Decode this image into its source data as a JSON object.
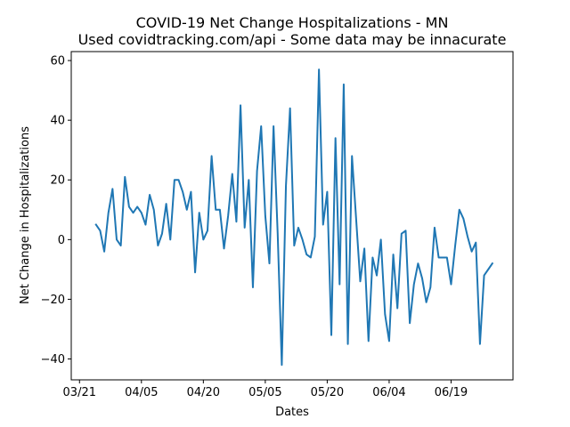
{
  "chart_data": {
    "type": "line",
    "title_line1": "COVID-19 Net Change Hospitalizations - MN",
    "title_line2": "Used covidtracking.com/api - Some data may be innacurate",
    "xlabel": "Dates",
    "ylabel": "Net Change in Hospitalizations",
    "x_start": "2020-03-25",
    "x_end": "2020-06-30",
    "xlim": [
      "2020-03-19",
      "2020-07-04"
    ],
    "ylim": [
      -47,
      63
    ],
    "x_ticks": [
      {
        "date": "2020-03-21",
        "label": "03/21"
      },
      {
        "date": "2020-04-05",
        "label": "04/05"
      },
      {
        "date": "2020-04-20",
        "label": "04/20"
      },
      {
        "date": "2020-05-05",
        "label": "05/05"
      },
      {
        "date": "2020-05-20",
        "label": "05/20"
      },
      {
        "date": "2020-06-04",
        "label": "06/04"
      },
      {
        "date": "2020-06-19",
        "label": "06/19"
      }
    ],
    "y_ticks": [
      {
        "value": 60,
        "label": "60"
      },
      {
        "value": 40,
        "label": "40"
      },
      {
        "value": 20,
        "label": "20"
      },
      {
        "value": 0,
        "label": "0"
      },
      {
        "value": -20,
        "label": "−20"
      },
      {
        "value": -40,
        "label": "−40"
      }
    ],
    "series": [
      {
        "color": "#1f77b4",
        "values": [
          5,
          3,
          -4,
          9,
          17,
          0,
          -2,
          21,
          11,
          9,
          11,
          9,
          5,
          15,
          10,
          -2,
          2,
          12,
          0,
          20,
          20,
          16,
          10,
          16,
          -11,
          9,
          0,
          3,
          28,
          10,
          10,
          -3,
          8,
          22,
          6,
          45,
          4,
          20,
          -16,
          23,
          38,
          8,
          -8,
          38,
          2,
          -42,
          18,
          44,
          -2,
          4,
          0,
          -5,
          -6,
          1,
          57,
          5,
          16,
          -32,
          34,
          -15,
          52,
          -35,
          28,
          7,
          -14,
          -3,
          -34,
          -6,
          -12,
          0,
          -25,
          -34,
          -5,
          -23,
          2,
          3,
          -28,
          -15,
          -8,
          -13,
          -21,
          -16,
          4,
          -6,
          -6,
          -6,
          -15,
          -2,
          10,
          7,
          1,
          -4,
          -1,
          -35,
          -12,
          -10,
          -8
        ]
      }
    ]
  }
}
